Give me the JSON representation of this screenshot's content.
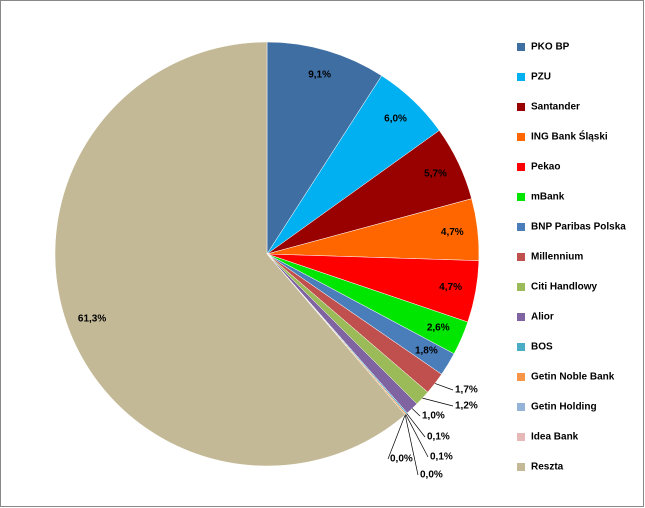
{
  "chart_data": {
    "type": "pie",
    "categories": [
      "PKO BP",
      "PZU",
      "Santander",
      "ING Bank Śląski",
      "Pekao",
      "mBank",
      "BNP Paribas Polska",
      "Millennium",
      "Citi Handlowy",
      "Alior",
      "BOS",
      "Getin Noble Bank",
      "Getin Holding",
      "Idea Bank",
      "Reszta"
    ],
    "values": [
      9.1,
      6.0,
      5.7,
      4.7,
      4.7,
      2.6,
      1.8,
      1.7,
      1.2,
      1.0,
      0.1,
      0.1,
      0.0,
      0.0,
      61.3
    ],
    "value_labels": [
      "9,1%",
      "6,0%",
      "5,7%",
      "4,7%",
      "4,7%",
      "2,6%",
      "1,8%",
      "1,7%",
      "1,2%",
      "1,0%",
      "0,1%",
      "0,1%",
      "0,0%",
      "0,0%",
      "61,3%"
    ],
    "colors": [
      "#3f6ea3",
      "#00b0f0",
      "#990000",
      "#ff6600",
      "#ff0000",
      "#00e600",
      "#4a7ebb",
      "#c0504d",
      "#9bbb59",
      "#8064a2",
      "#4bacc6",
      "#f79646",
      "#95b3d7",
      "#e6b9b8",
      "#c4b996"
    ],
    "legend": "right"
  }
}
